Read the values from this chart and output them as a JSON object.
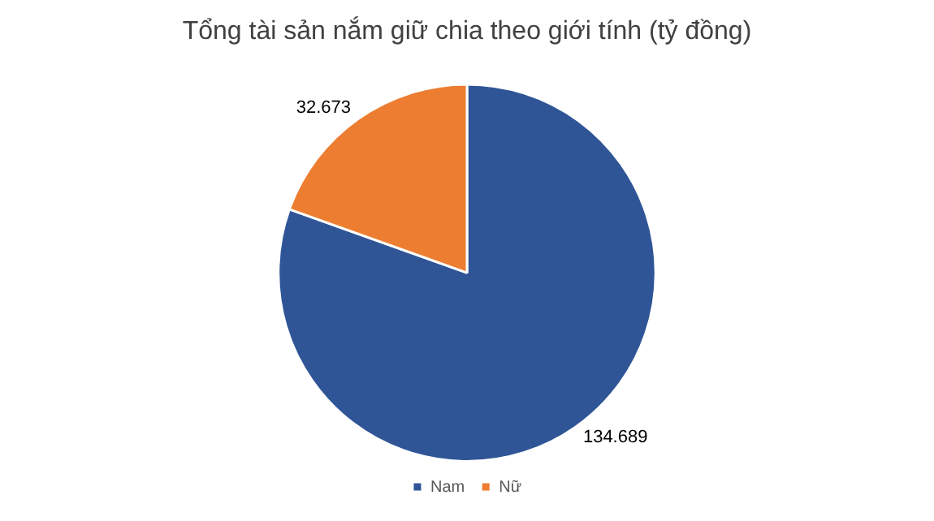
{
  "chart_data": {
    "type": "pie",
    "title": "Tổng tài sản nắm giữ chia theo giới tính (tỷ đồng)",
    "categories": [
      "Nam",
      "Nữ"
    ],
    "values": [
      134689,
      32673
    ],
    "colors": [
      "#2f5597",
      "#ed7d31"
    ],
    "value_labels": [
      "134.689",
      "32.673"
    ],
    "legend": "bottom"
  }
}
